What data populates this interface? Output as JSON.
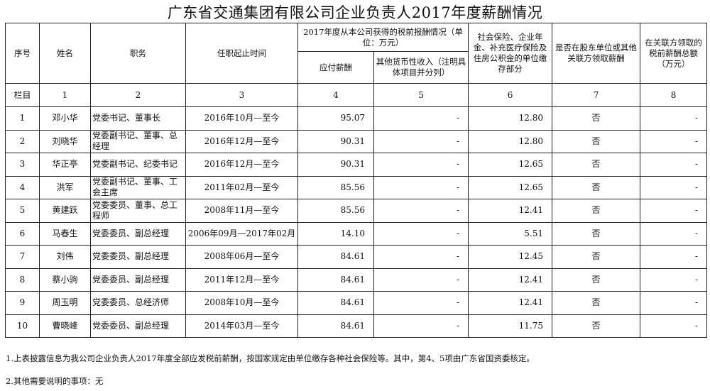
{
  "title": "广东省交通集团有限公司企业负责人2017年度薪酬情况",
  "headers": {
    "seq": "序号",
    "name": "姓名",
    "position": "职务",
    "tenure": "任职起止时间",
    "group": "2017年度从本公司获得的税前报酬情况（单位：万元）",
    "salary": "应付薪酬",
    "other": "其他货币性收入（注明具体项目并分列）",
    "insurance": "社会保险、企业年金、补充医疗保险及住房公积金的单位缴存部分",
    "shareholder": "是否在股东单位或其他关联方领取薪酬",
    "related": "在关联方领取的税前薪酬总额（万元）"
  },
  "column_row": {
    "label": "栏目",
    "nums": [
      "1",
      "2",
      "3",
      "4",
      "5",
      "6",
      "7",
      "8"
    ]
  },
  "rows": [
    {
      "seq": "1",
      "name": "邓小华",
      "position": "党委书记、董事长",
      "tenure": "2016年10月—至今",
      "salary": "95.07",
      "other": "-",
      "insurance": "12.80",
      "shareholder": "否",
      "related": "-"
    },
    {
      "seq": "2",
      "name": "刘晓华",
      "position": "党委副书记、董事、总经理",
      "tenure": "2016年12月—至今",
      "salary": "90.31",
      "other": "-",
      "insurance": "12.80",
      "shareholder": "否",
      "related": "-"
    },
    {
      "seq": "3",
      "name": "华正亭",
      "position": "党委副书记、纪委书记",
      "tenure": "2016年12月—至今",
      "salary": "90.31",
      "other": "-",
      "insurance": "12.65",
      "shareholder": "否",
      "related": "-"
    },
    {
      "seq": "4",
      "name": "洪军",
      "position": "党委副书记、董事、工会主席",
      "tenure": "2011年02月—至今",
      "salary": "85.56",
      "other": "-",
      "insurance": "12.65",
      "shareholder": "否",
      "related": "-"
    },
    {
      "seq": "5",
      "name": "黄建跃",
      "position": "党委委员、董事、总工程师",
      "tenure": "2008年11月—至今",
      "salary": "85.56",
      "other": "-",
      "insurance": "12.41",
      "shareholder": "否",
      "related": "-"
    },
    {
      "seq": "6",
      "name": "马春生",
      "position": "党委委员、副总经理",
      "tenure": "2006年09月—2017年02月",
      "salary": "14.10",
      "other": "-",
      "insurance": "5.51",
      "shareholder": "否",
      "related": "-"
    },
    {
      "seq": "7",
      "name": "刘伟",
      "position": "党委委员、副总经理",
      "tenure": "2008年06月—至今",
      "salary": "84.61",
      "other": "-",
      "insurance": "12.45",
      "shareholder": "否",
      "related": "-"
    },
    {
      "seq": "8",
      "name": "蔡小驹",
      "position": "党委委员、副总经理",
      "tenure": "2011年12月—至今",
      "salary": "84.61",
      "other": "-",
      "insurance": "12.41",
      "shareholder": "否",
      "related": "-"
    },
    {
      "seq": "9",
      "name": "周玉明",
      "position": "党委委员、总经济师",
      "tenure": "2008年10月—至今",
      "salary": "84.61",
      "other": "-",
      "insurance": "12.41",
      "shareholder": "否",
      "related": "-"
    },
    {
      "seq": "10",
      "name": "曹晓峰",
      "position": "党委委员、副总经理",
      "tenure": "2014年03月—至今",
      "salary": "84.61",
      "other": "-",
      "insurance": "11.75",
      "shareholder": "否",
      "related": "-"
    }
  ],
  "notes": [
    "1.上表披露信息为我公司企业负责人2017年度全部应发税前薪酬，按国家规定由单位缴存各种社会保险等。其中，第4、5项由广东省国资委核定。",
    "2.其他需要说明的事项：无"
  ]
}
